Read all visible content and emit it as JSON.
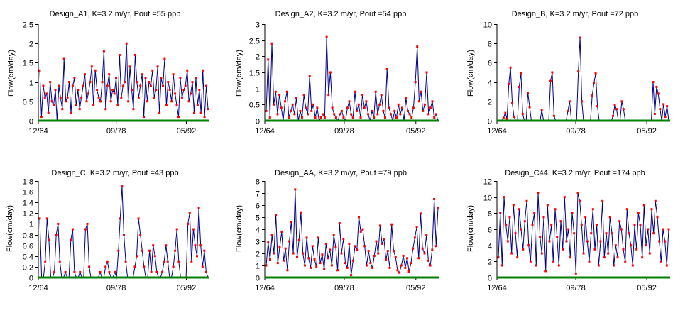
{
  "figure": {
    "line_color": "#00008b",
    "marker_color": "#ff0000",
    "baseline_color": "#008000"
  },
  "chart_data": [
    {
      "type": "line",
      "title": "Design_A1, K=3.2 m/yr,  Pout =55 ppb",
      "ylabel": "Flow(cm/day)",
      "ylim": [
        0,
        2.5
      ],
      "yticks": [
        "0",
        "0.5",
        "1",
        "1.5",
        "2",
        "2.5"
      ],
      "yticks_values": [
        0,
        0.5,
        1,
        1.5,
        2,
        2.5
      ],
      "xticks": [
        "12/64",
        "09/78",
        "05/92"
      ],
      "xlim": [
        1964.9,
        1996.3
      ],
      "series": [
        {
          "values": [
            1.3,
            0.1,
            0.9,
            0.6,
            0.7,
            0.2,
            1.0,
            0.5,
            0.4,
            0.8,
            0.0,
            0.9,
            0.6,
            0.3,
            1.6,
            0.5,
            0.6,
            1.0,
            0.2,
            0.9,
            1.1,
            0.4,
            0.8,
            0.3,
            0.6,
            0.9,
            1.2,
            0.5,
            0.7,
            1.0,
            1.4,
            0.4,
            1.3,
            0.8,
            0.6,
            0.5,
            1.0,
            1.8,
            0.3,
            0.9,
            1.2,
            0.5,
            0.8,
            0.7,
            1.1,
            0.4,
            1.7,
            0.6,
            0.9,
            1.0,
            2.0,
            0.5,
            1.4,
            0.8,
            0.3,
            1.7,
            1.0,
            0.6,
            0.9,
            1.2,
            0.1,
            1.1,
            0.5,
            1.0,
            0.9,
            1.3,
            0.6,
            0.8,
            1.4,
            0.2,
            1.1,
            0.9,
            1.6,
            0.4,
            1.0,
            0.8,
            0.5,
            1.2,
            0.7,
            0.4,
            0.1,
            1.1,
            0.6,
            0.8,
            0.9,
            1.3,
            0.5,
            0.7,
            1.0,
            0.2,
            1.1,
            0.4,
            0.8,
            0.2,
            1.3,
            0.1,
            0.9,
            0.3
          ]
        }
      ]
    },
    {
      "type": "line",
      "title": "Design_A2, K=3.2 m/yr,  Pout =54 ppb",
      "ylabel": "Flow(cm/day)",
      "ylim": [
        0,
        3
      ],
      "yticks": [
        "0",
        "0.5",
        "1",
        "1.5",
        "2",
        "2.5",
        "3"
      ],
      "yticks_values": [
        0,
        0.5,
        1,
        1.5,
        2,
        2.5,
        3
      ],
      "xticks": [
        "12/64",
        "09/78",
        "05/92"
      ],
      "xlim": [
        1964.9,
        1996.3
      ],
      "series": [
        {
          "values": [
            0.3,
            1.9,
            0.1,
            2.4,
            0.5,
            0.9,
            0.2,
            0.8,
            0.4,
            0.0,
            0.6,
            0.9,
            0.1,
            0.3,
            0.5,
            0.2,
            0.7,
            0.0,
            0.3,
            0.1,
            0.8,
            0.4,
            0.2,
            1.4,
            0.3,
            0.5,
            0.1,
            0.4,
            0.0,
            0.1,
            0.2,
            0.1,
            2.6,
            0.8,
            1.5,
            0.4,
            0.2,
            0.1,
            0.0,
            0.2,
            0.3,
            0.1,
            0.0,
            0.4,
            0.6,
            0.2,
            0.1,
            0.9,
            0.3,
            0.5,
            0.1,
            0.8,
            0.4,
            0.6,
            0.2,
            0.0,
            0.3,
            0.1,
            0.9,
            0.2,
            0.5,
            0.8,
            0.3,
            0.1,
            1.6,
            0.4,
            0.2,
            0.0,
            0.3,
            0.1,
            0.5,
            0.2,
            0.4,
            0.0,
            0.7,
            0.3,
            0.2,
            0.1,
            0.4,
            1.2,
            2.3,
            0.6,
            0.9,
            0.3,
            0.5,
            1.5,
            0.2,
            0.4,
            0.6,
            0.1,
            0.2,
            0.0
          ]
        }
      ]
    },
    {
      "type": "line",
      "title": "Design_B, K=3.2 m/yr,  Pout =72 ppb",
      "ylabel": "Flow(cm/day)",
      "ylim": [
        0,
        10
      ],
      "yticks": [
        "0",
        "2",
        "4",
        "6",
        "8",
        "10"
      ],
      "yticks_values": [
        0,
        2,
        4,
        6,
        8,
        10
      ],
      "xticks": [
        "12/64",
        "09/78",
        "05/92"
      ],
      "xlim": [
        1964.9,
        1996.3
      ],
      "series": [
        {
          "values": [
            0,
            0,
            0,
            0.3,
            0.8,
            0.2,
            3.8,
            5.5,
            1.8,
            0.4,
            0,
            0,
            3.5,
            4.9,
            0.7,
            0,
            0,
            2.9,
            1.4,
            0,
            0,
            0,
            0,
            0,
            0,
            1.1,
            0,
            0,
            0,
            0,
            4.1,
            5.0,
            0.5,
            0,
            0,
            0,
            0,
            0,
            0,
            0,
            1.0,
            2.0,
            0,
            0,
            0,
            0,
            5.1,
            8.6,
            2.0,
            0,
            0,
            0,
            0,
            0,
            2.6,
            3.9,
            4.9,
            1.5,
            0,
            0,
            0,
            0,
            0,
            0,
            0,
            0,
            0.5,
            1.6,
            1.2,
            0,
            0,
            2.0,
            1.2,
            0,
            0,
            0,
            0,
            0,
            0,
            0,
            0,
            0,
            0,
            0,
            0,
            0,
            0,
            0,
            0,
            4.0,
            0.7,
            3.5,
            2.8,
            1.2,
            0,
            1.7,
            0.4,
            1.5,
            0
          ]
        }
      ]
    },
    {
      "type": "line",
      "title": "Design_C, K=3.2 m/yr,  Pout =43 ppb",
      "ylabel": "Flow(cm/day)",
      "ylim": [
        0,
        1.8
      ],
      "yticks": [
        "0",
        "0.2",
        "0.4",
        "0.6",
        "0.8",
        "1",
        "1.2",
        "1.4",
        "1.6",
        "1.8"
      ],
      "yticks_values": [
        0,
        0.2,
        0.4,
        0.6,
        0.8,
        1,
        1.2,
        1.4,
        1.6,
        1.8
      ],
      "xticks": [
        "12/64",
        "09/78",
        "05/92"
      ],
      "xlim": [
        1964.9,
        1996.3
      ],
      "series": [
        {
          "values": [
            1.1,
            0,
            0,
            0.3,
            1.1,
            0.7,
            0,
            0,
            0.1,
            0.8,
            1.0,
            0.3,
            0,
            0,
            0.1,
            0,
            0,
            0.7,
            0.9,
            0.1,
            0,
            0,
            0.1,
            0,
            0,
            0.9,
            1.0,
            0.2,
            0,
            0,
            0,
            0,
            0,
            0.1,
            0,
            0,
            0.2,
            0.3,
            0.1,
            0,
            0,
            0.1,
            0,
            0.5,
            1.1,
            1.7,
            0.8,
            0.3,
            0,
            0,
            0,
            0,
            0.2,
            0.4,
            1.1,
            0.8,
            0.5,
            0.2,
            0,
            0,
            0.5,
            0.1,
            0.6,
            0.4,
            0.1,
            0,
            0,
            0.1,
            0.3,
            0.6,
            0.3,
            0,
            0,
            0.2,
            0.5,
            0.9,
            0.3,
            0,
            0,
            0,
            0,
            1.0,
            1.2,
            0.3,
            0.9,
            0.6,
            0.4,
            1.3,
            0.6,
            0.2,
            0.5,
            0.1,
            0
          ]
        }
      ]
    },
    {
      "type": "line",
      "title": "Design_AA, K=3.2 m/yr,  Pout =79 ppb",
      "ylabel": "Flow(cm/day)",
      "ylim": [
        0,
        8
      ],
      "yticks": [
        "0",
        "1",
        "2",
        "3",
        "4",
        "5",
        "6",
        "7",
        "8"
      ],
      "yticks_values": [
        0,
        1,
        2,
        3,
        4,
        5,
        6,
        7,
        8
      ],
      "xticks": [
        "12/64",
        "09/78",
        "05/92"
      ],
      "xlim": [
        1964.9,
        1996.3
      ],
      "series": [
        {
          "values": [
            1.0,
            2.9,
            1.5,
            3.5,
            2.0,
            5.2,
            1.2,
            2.5,
            3.8,
            1.4,
            2.4,
            0.6,
            3.0,
            4.6,
            2.0,
            7.3,
            1.7,
            3.1,
            5.4,
            2.0,
            1.0,
            3.3,
            1.6,
            0.8,
            2.6,
            1.5,
            0.9,
            3.3,
            1.2,
            1.9,
            0.7,
            2.8,
            1.6,
            2.3,
            1.0,
            3.5,
            2.5,
            0.6,
            4.5,
            2.0,
            3.2,
            1.2,
            0.8,
            2.8,
            0.2,
            1.4,
            2.6,
            2.3,
            5.0,
            3.8,
            4.0,
            2.6,
            1.0,
            2.2,
            1.2,
            0.8,
            1.8,
            3.0,
            2.0,
            4.3,
            2.8,
            3.2,
            1.5,
            2.2,
            0.8,
            4.4,
            2.2,
            1.7,
            0.6,
            0.4,
            1.0,
            1.8,
            0.8,
            1.6,
            0.5,
            1.2,
            2.4,
            3.3,
            4.2,
            1.6,
            5.3,
            2.4,
            2.0,
            3.5,
            1.4,
            1.0,
            2.3,
            6.5,
            2.6,
            5.8
          ]
        }
      ]
    },
    {
      "type": "line",
      "title": "Design_C44, K=3.2 m/yr,  Pout =174 ppb",
      "ylabel": "Flow(cm/day)",
      "ylim": [
        0,
        12
      ],
      "yticks": [
        "0",
        "2",
        "4",
        "6",
        "8",
        "10",
        "12"
      ],
      "yticks_values": [
        0,
        2,
        4,
        6,
        8,
        10,
        12
      ],
      "xticks": [
        "12/64",
        "09/78",
        "05/92"
      ],
      "xlim": [
        1964.9,
        1996.3
      ],
      "series": [
        {
          "values": [
            2.5,
            8.0,
            1.5,
            10.0,
            6.5,
            4.5,
            7.5,
            3.0,
            9.0,
            5.5,
            2.5,
            8.5,
            6.0,
            3.5,
            7.0,
            9.5,
            4.0,
            2.0,
            6.5,
            8.0,
            1.5,
            10.5,
            5.0,
            3.0,
            7.5,
            0.8,
            9.0,
            4.5,
            6.5,
            2.0,
            8.5,
            5.0,
            1.5,
            7.0,
            3.5,
            10.0,
            4.5,
            6.0,
            2.5,
            8.0,
            5.5,
            0.5,
            10.5,
            9.5,
            6.5,
            3.0,
            7.5,
            4.5,
            2.0,
            5.5,
            8.5,
            3.5,
            6.5,
            1.5,
            4.5,
            9.5,
            2.5,
            5.5,
            3.0,
            7.5,
            5.5,
            1.5,
            4.0,
            2.5,
            7.0,
            6.0,
            3.5,
            2.0,
            8.5,
            5.5,
            4.0,
            1.5,
            6.5,
            3.5,
            8.0,
            6.5,
            2.5,
            9.0,
            4.0,
            6.0,
            3.0,
            8.5,
            5.5,
            9.5,
            7.5,
            4.5,
            2.0,
            6.0,
            4.5,
            1.5,
            6.0
          ]
        }
      ]
    }
  ]
}
